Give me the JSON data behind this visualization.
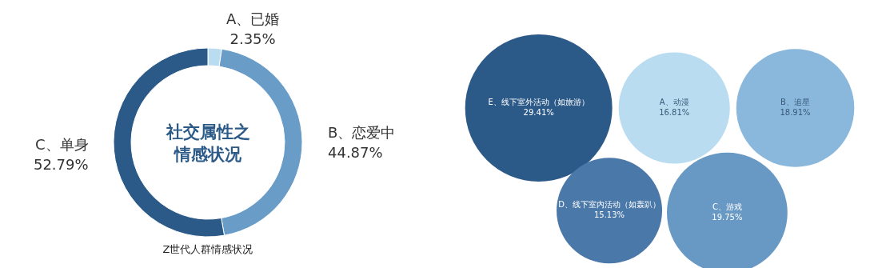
{
  "chart_data": [
    {
      "type": "donut",
      "title": "社交属性之情感状况",
      "categories": [
        "A、已婚",
        "B、恋爱中",
        "C、单身"
      ],
      "values": [
        2.35,
        44.87,
        52.79
      ],
      "value_labels": [
        "2.35%",
        "44.87%",
        "52.79%"
      ],
      "colors": [
        "#b9dcf0",
        "#6a9cc8",
        "#2c5a88"
      ],
      "annotations": [
        "Z世代人群情感状况"
      ]
    },
    {
      "type": "other",
      "categories": [
        "E、线下室外活动（如旅游）",
        "A、动漫",
        "B、追星",
        "D、线下室内活动（如轰趴）",
        "C、游戏"
      ],
      "values": [
        29.41,
        16.81,
        18.91,
        15.13,
        19.75
      ],
      "value_labels": [
        "29.41%",
        "16.81%",
        "18.91%",
        "15.13%",
        "19.75%"
      ],
      "colors": [
        "#2c5a88",
        "#b9dcf0",
        "#8ab8dc",
        "#4a78a8",
        "#6898c4"
      ]
    }
  ]
}
